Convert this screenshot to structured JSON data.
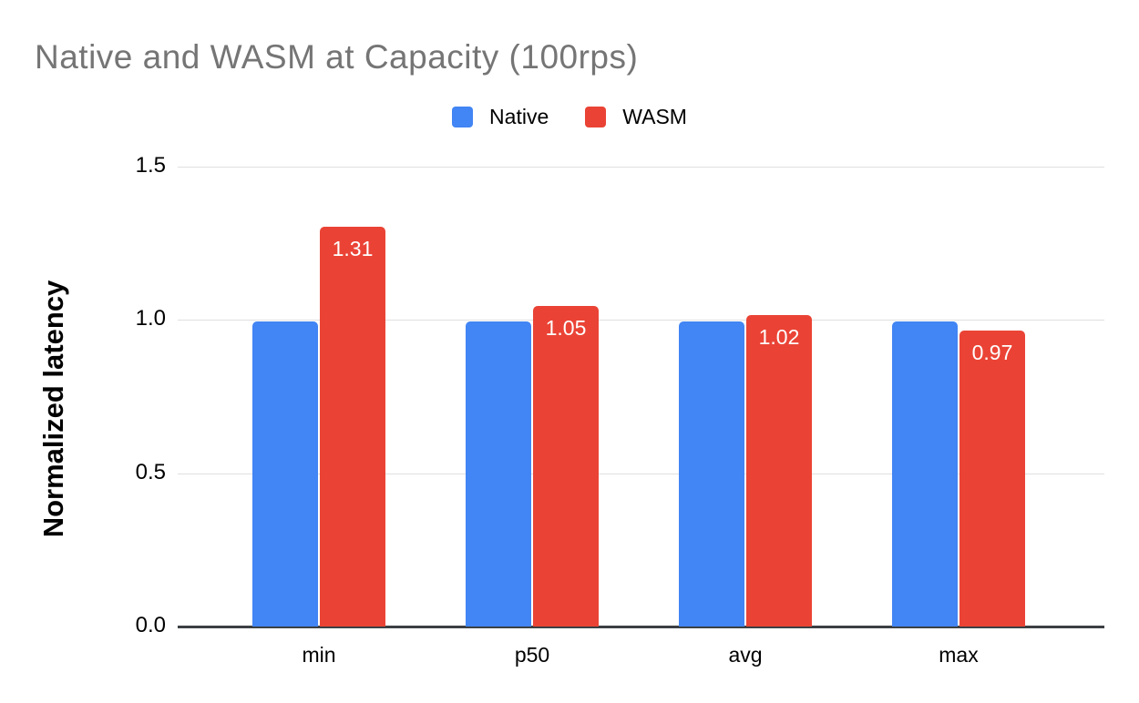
{
  "chart": {
    "title": "Native and WASM at Capacity (100rps)"
  },
  "chart_data": {
    "type": "bar",
    "title": "Native and WASM at Capacity (100rps)",
    "categories": [
      "min",
      "p50",
      "avg",
      "max"
    ],
    "series": [
      {
        "name": "Native",
        "color": "#4285F4",
        "values": [
          1.0,
          1.0,
          1.0,
          1.0
        ],
        "bar_labels": [
          "",
          "",
          "",
          ""
        ]
      },
      {
        "name": "WASM",
        "color": "#EA4335",
        "values": [
          1.31,
          1.05,
          1.02,
          0.97
        ],
        "bar_labels": [
          "1.31",
          "1.05",
          "1.02",
          "0.97"
        ]
      }
    ],
    "xlabel": "",
    "ylabel": "Normalized latency",
    "ylim": [
      0,
      1.5
    ],
    "yticks": [
      0,
      0.5,
      1.0,
      1.5
    ],
    "ytick_labels": [
      "0.0",
      "0.5",
      "1.0",
      "1.5"
    ],
    "grid": true,
    "legend_position": "top-center",
    "colors": {
      "series_native": "#4285F4",
      "series_wasm": "#EA4335",
      "title_text": "#757575",
      "axis_text": "#000000",
      "bar_label_text": "#FFFFFF",
      "gridline": "#E0E0E0",
      "axis_line": "#3C4043",
      "background": "#FFFFFF"
    }
  }
}
